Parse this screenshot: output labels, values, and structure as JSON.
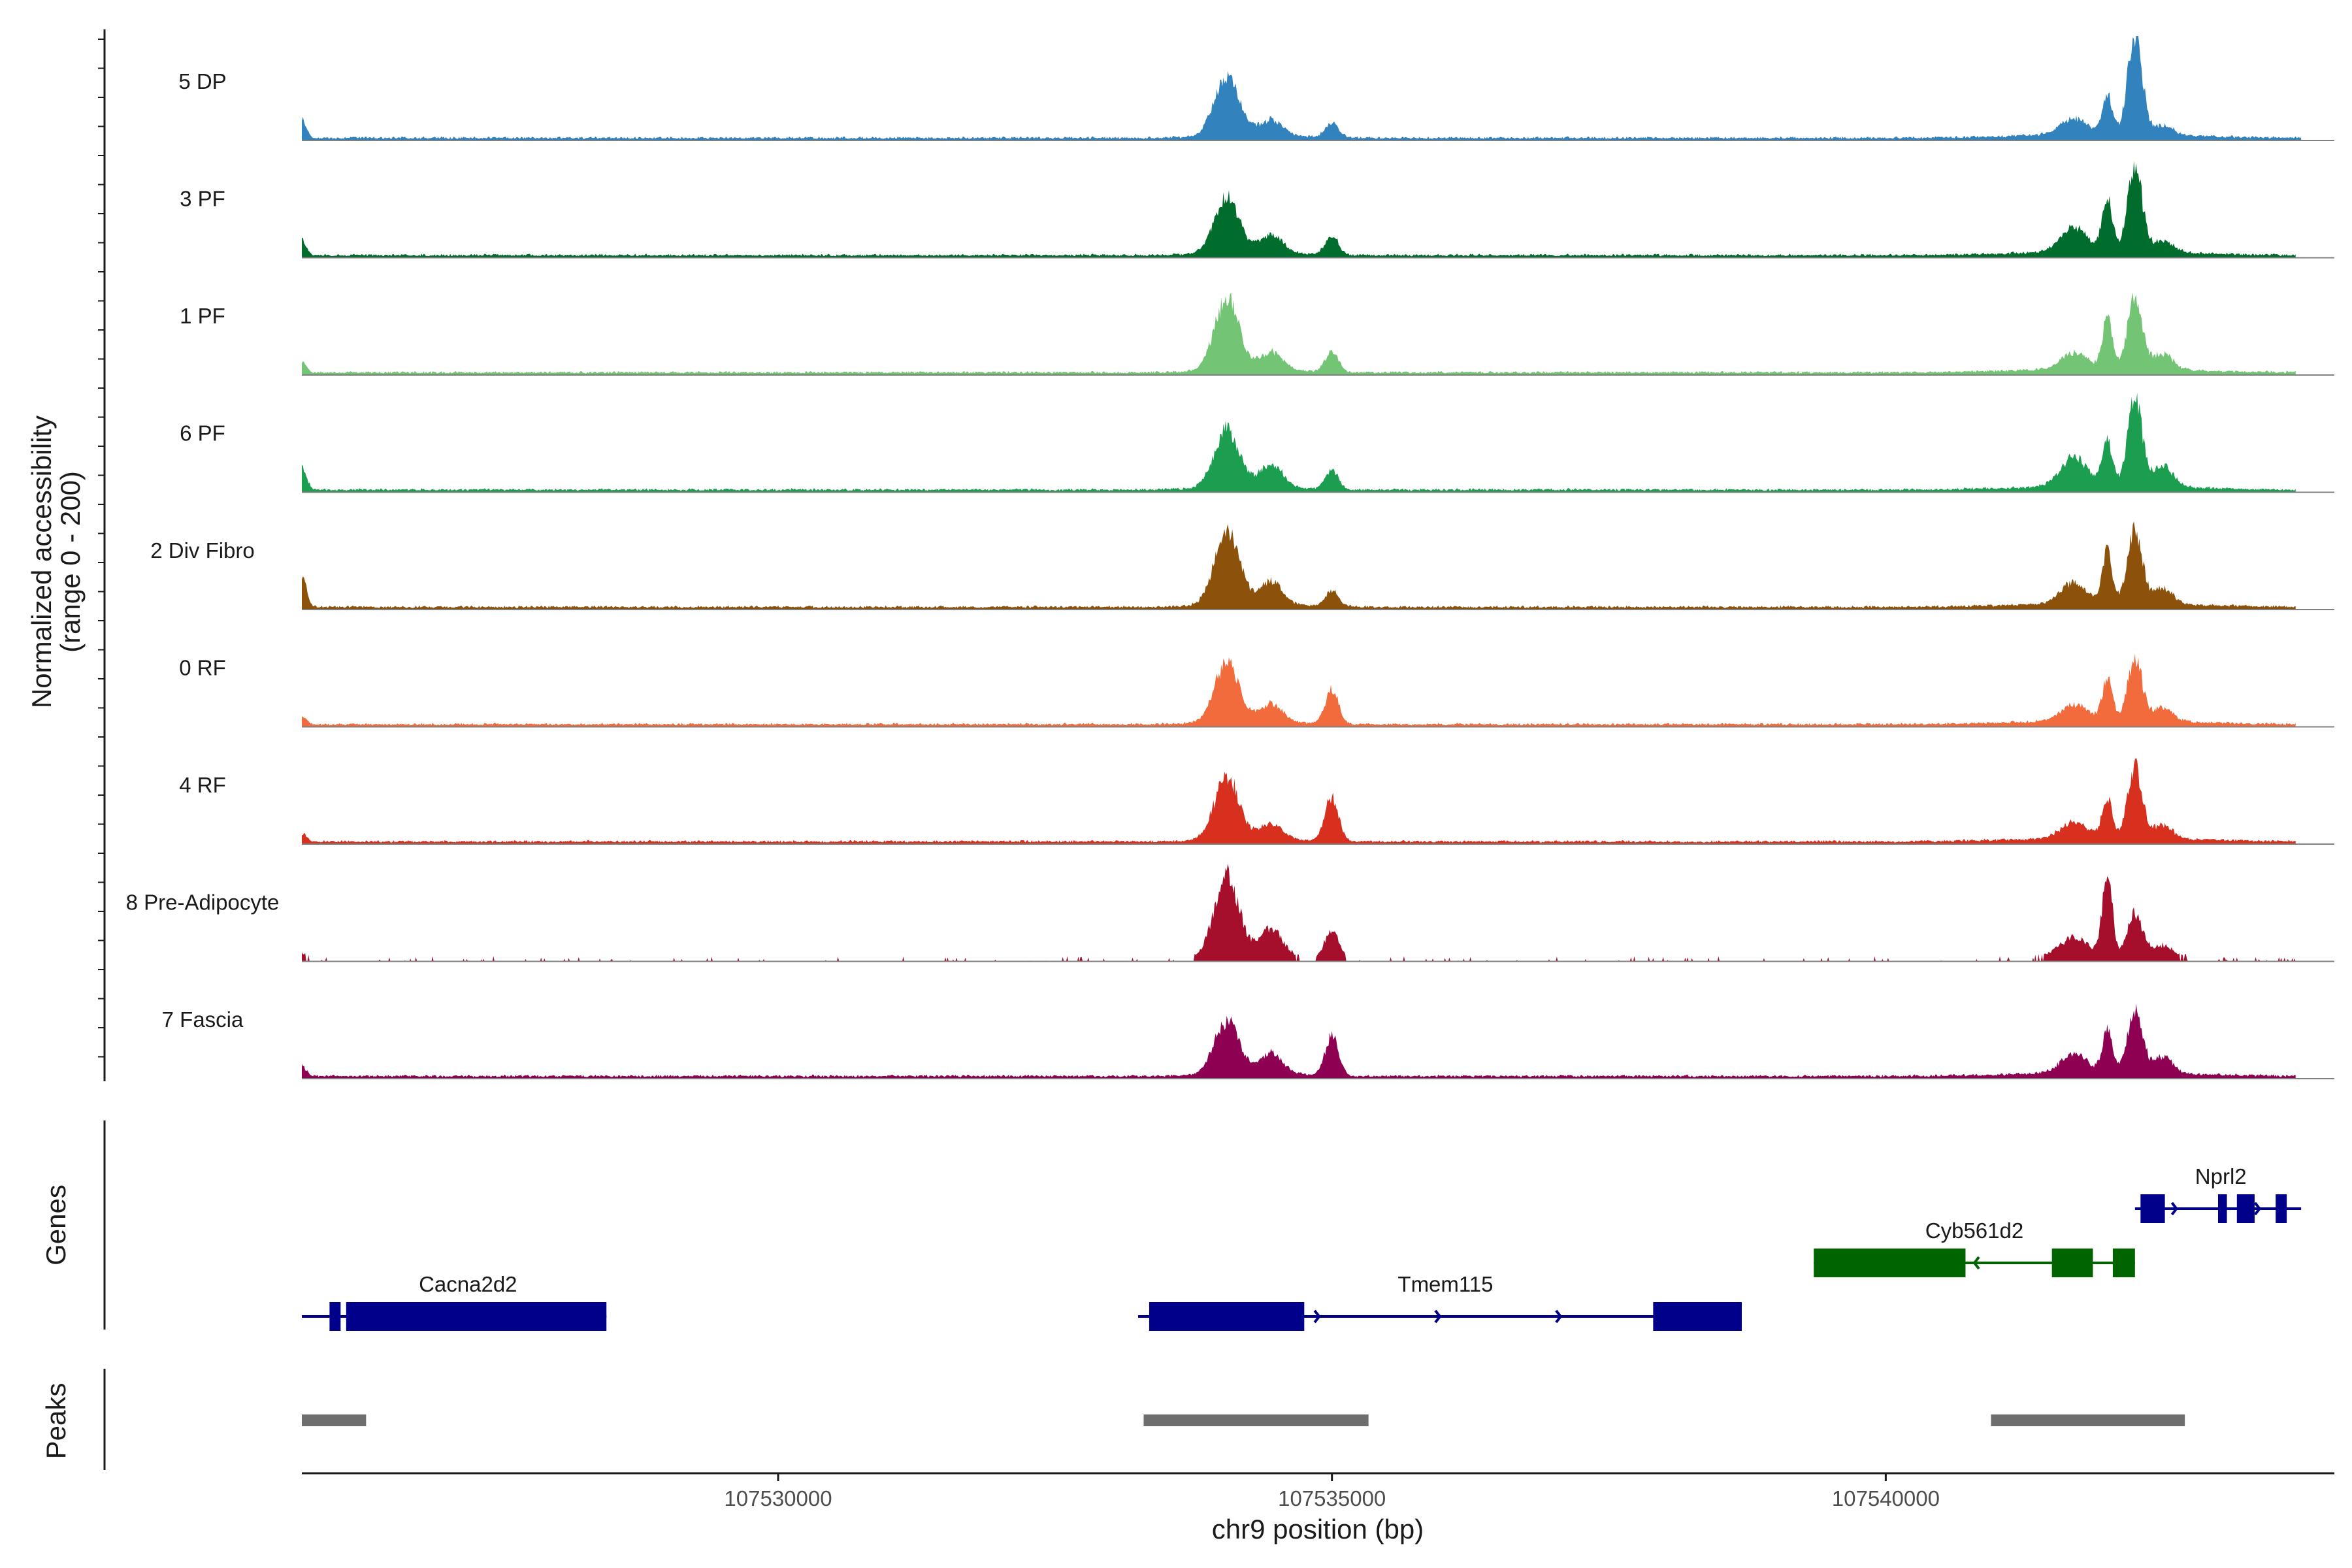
{
  "chart_data": {
    "type": "area",
    "title": "",
    "y_axis_title": [
      "Normalized accessibility",
      "(range 0 - 200)"
    ],
    "ylim": [
      0,
      200
    ],
    "x_axis_title": "chr9 position (bp)",
    "xlim": [
      107525700,
      107544050
    ],
    "x_ticks": [
      {
        "value": 107530000,
        "label": "107530000"
      },
      {
        "value": 107535000,
        "label": "107535000"
      },
      {
        "value": 107540000,
        "label": "107540000"
      }
    ],
    "track_peak_profiles": [
      {
        "center": 107534050,
        "width": 110
      },
      {
        "center": 107534450,
        "width": 100
      },
      {
        "center": 107535000,
        "width": 60
      },
      {
        "center": 107541700,
        "width": 120
      },
      {
        "center": 107542000,
        "width": 45
      },
      {
        "center": 107542250,
        "width": 65
      },
      {
        "center": 107542500,
        "width": 90
      },
      {
        "center": 107525700,
        "width": 40
      }
    ],
    "series": [
      {
        "name": "5 DP",
        "color": "#3182bd",
        "amplitudes": [
          115,
          30,
          28,
          30,
          75,
          190,
          18,
          35
        ]
      },
      {
        "name": "3 PF",
        "color": "#006d2c",
        "amplitudes": [
          105,
          35,
          35,
          45,
          100,
          160,
          22,
          30
        ]
      },
      {
        "name": "1 PF",
        "color": "#74c476",
        "amplitudes": [
          135,
          35,
          40,
          30,
          95,
          140,
          30,
          20
        ]
      },
      {
        "name": "6 PF",
        "color": "#1b9e50",
        "amplitudes": [
          110,
          45,
          35,
          55,
          85,
          165,
          40,
          45
        ]
      },
      {
        "name": "2 Div Fibro",
        "color": "#8c510a",
        "amplitudes": [
          145,
          45,
          30,
          40,
          95,
          140,
          30,
          60
        ]
      },
      {
        "name": "0 RF",
        "color": "#f26b3d",
        "amplitudes": [
          110,
          35,
          65,
          30,
          80,
          120,
          25,
          15
        ]
      },
      {
        "name": "4 RF",
        "color": "#d7301f",
        "amplitudes": [
          120,
          30,
          85,
          30,
          75,
          135,
          25,
          15
        ]
      },
      {
        "name": "8 Pre-Adipocyte",
        "color": "#a50f2b",
        "amplitudes": [
          155,
          55,
          55,
          35,
          150,
          80,
          20,
          12
        ]
      },
      {
        "name": "7 Fascia",
        "color": "#8e0152",
        "amplitudes": [
          100,
          40,
          75,
          35,
          80,
          125,
          30,
          20
        ]
      }
    ],
    "genes_track_title": "Genes",
    "genes": [
      {
        "name": "Cacna2d2",
        "start": 107525700,
        "end": 107528450,
        "strand": "+",
        "color": "#00008b",
        "row": 2,
        "exons": [
          [
            107525950,
            107526050
          ],
          [
            107526100,
            107528450
          ]
        ]
      },
      {
        "name": "Tmem115",
        "start": 107533250,
        "end": 107538700,
        "strand": "+",
        "color": "#00008b",
        "row": 2,
        "exons": [
          [
            107533350,
            107534750
          ],
          [
            107537900,
            107538700
          ]
        ]
      },
      {
        "name": "Cyb561d2",
        "start": 107539350,
        "end": 107542250,
        "strand": "-",
        "color": "#006400",
        "row": 1,
        "exons": [
          [
            107539350,
            107540720
          ],
          [
            107542050,
            107542130
          ],
          [
            107541500,
            107541870
          ],
          [
            107542100,
            107542250
          ]
        ]
      },
      {
        "name": "Nprl2",
        "start": 107542250,
        "end": 107543750,
        "strand": "+",
        "color": "#00008b",
        "row": 0,
        "exons": [
          [
            107542300,
            107542520
          ],
          [
            107543000,
            107543080
          ],
          [
            107543170,
            107543330
          ],
          [
            107543520,
            107543620
          ]
        ]
      }
    ],
    "peaks_track_title": "Peaks",
    "peaks": [
      {
        "start": 107525700,
        "end": 107526280
      },
      {
        "start": 107533300,
        "end": 107535330
      },
      {
        "start": 107540950,
        "end": 107542700
      }
    ]
  }
}
